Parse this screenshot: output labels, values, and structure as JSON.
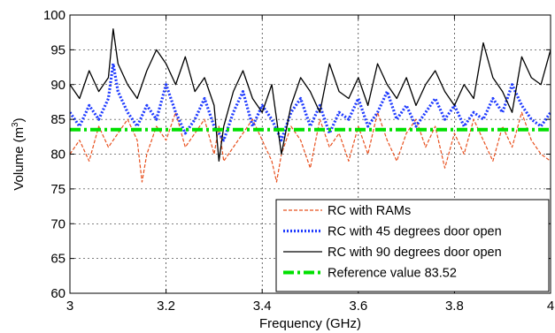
{
  "chart_data": {
    "type": "line",
    "title": "",
    "xlabel": "Frequency (GHz)",
    "ylabel_main": "Volume (m",
    "ylabel_sup": "3",
    "ylabel_close": ")",
    "xlim": [
      3,
      4
    ],
    "ylim": [
      60,
      100
    ],
    "grid": true,
    "legend_position": "bottom-right",
    "x_ticks": [
      3,
      3.2,
      3.4,
      3.6,
      3.8,
      4
    ],
    "x_tick_labels": [
      "3",
      "3.2",
      "3.4",
      "3.6",
      "3.8",
      "4"
    ],
    "y_ticks": [
      60,
      65,
      70,
      75,
      80,
      85,
      90,
      95,
      100
    ],
    "y_tick_labels": [
      "60",
      "65",
      "70",
      "75",
      "80",
      "85",
      "90",
      "95",
      "100"
    ],
    "series": [
      {
        "name": "RC with RAMs",
        "color": "#e8501e",
        "style": "dashed",
        "x": [
          3.0,
          3.02,
          3.04,
          3.06,
          3.08,
          3.1,
          3.12,
          3.14,
          3.15,
          3.16,
          3.18,
          3.2,
          3.22,
          3.24,
          3.26,
          3.28,
          3.3,
          3.31,
          3.32,
          3.34,
          3.36,
          3.38,
          3.4,
          3.42,
          3.43,
          3.44,
          3.46,
          3.48,
          3.5,
          3.52,
          3.54,
          3.56,
          3.58,
          3.6,
          3.62,
          3.64,
          3.66,
          3.68,
          3.7,
          3.72,
          3.74,
          3.76,
          3.78,
          3.8,
          3.82,
          3.84,
          3.86,
          3.88,
          3.9,
          3.92,
          3.94,
          3.96,
          3.98,
          4.0
        ],
        "y": [
          80,
          82,
          79,
          84,
          81,
          83,
          85,
          82,
          76,
          80,
          84,
          82,
          86,
          81,
          83,
          85,
          80,
          84,
          79,
          81,
          83,
          85,
          82,
          79,
          76,
          80,
          84,
          82,
          78,
          85,
          81,
          83,
          79,
          84,
          80,
          86,
          82,
          79,
          83,
          85,
          81,
          84,
          78,
          83,
          80,
          85,
          82,
          79,
          84,
          81,
          86,
          82,
          80,
          79
        ]
      },
      {
        "name": "RC with 45 degrees door open",
        "color": "#1f3bff",
        "style": "dotted",
        "x": [
          3.0,
          3.02,
          3.04,
          3.06,
          3.08,
          3.09,
          3.1,
          3.12,
          3.14,
          3.16,
          3.18,
          3.2,
          3.22,
          3.24,
          3.26,
          3.28,
          3.3,
          3.32,
          3.34,
          3.36,
          3.38,
          3.4,
          3.42,
          3.44,
          3.46,
          3.48,
          3.5,
          3.52,
          3.54,
          3.56,
          3.58,
          3.6,
          3.62,
          3.64,
          3.66,
          3.68,
          3.7,
          3.72,
          3.74,
          3.76,
          3.78,
          3.8,
          3.82,
          3.84,
          3.86,
          3.88,
          3.9,
          3.92,
          3.94,
          3.96,
          3.98,
          4.0
        ],
        "y": [
          86,
          84,
          87,
          85,
          88,
          93,
          89,
          86,
          84,
          87,
          85,
          90,
          86,
          83,
          85,
          88,
          84,
          82,
          86,
          89,
          84,
          87,
          85,
          82,
          86,
          88,
          84,
          87,
          83,
          86,
          85,
          88,
          84,
          86,
          89,
          85,
          87,
          84,
          86,
          88,
          85,
          87,
          84,
          86,
          85,
          88,
          86,
          90,
          87,
          85,
          84,
          86
        ]
      },
      {
        "name": "RC with 90 degrees door open",
        "color": "#000000",
        "style": "solid",
        "x": [
          3.0,
          3.02,
          3.04,
          3.06,
          3.08,
          3.09,
          3.1,
          3.12,
          3.14,
          3.16,
          3.18,
          3.2,
          3.22,
          3.24,
          3.26,
          3.28,
          3.3,
          3.31,
          3.32,
          3.34,
          3.36,
          3.38,
          3.4,
          3.42,
          3.44,
          3.46,
          3.48,
          3.5,
          3.52,
          3.54,
          3.56,
          3.58,
          3.6,
          3.62,
          3.64,
          3.66,
          3.68,
          3.7,
          3.72,
          3.74,
          3.76,
          3.78,
          3.8,
          3.82,
          3.84,
          3.86,
          3.88,
          3.9,
          3.92,
          3.94,
          3.96,
          3.98,
          4.0
        ],
        "y": [
          90,
          88,
          92,
          89,
          91,
          98,
          93,
          90,
          88,
          92,
          95,
          93,
          90,
          94,
          89,
          91,
          87,
          79,
          84,
          89,
          92,
          88,
          86,
          90,
          80,
          87,
          91,
          89,
          86,
          93,
          89,
          88,
          91,
          87,
          93,
          90,
          88,
          91,
          87,
          90,
          92,
          89,
          87,
          90,
          88,
          96,
          91,
          89,
          86,
          94,
          91,
          90,
          95
        ]
      },
      {
        "name": "Reference value 83.52",
        "color": "#00e000",
        "style": "dashdot",
        "x": [
          3.0,
          4.0
        ],
        "y": [
          83.52,
          83.52
        ]
      }
    ]
  }
}
